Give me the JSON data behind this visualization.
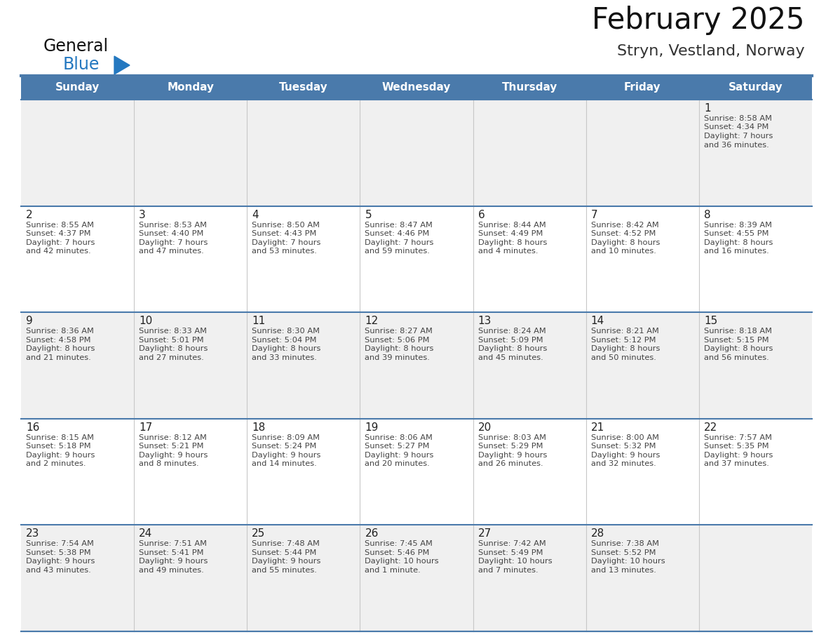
{
  "title": "February 2025",
  "subtitle": "Stryn, Vestland, Norway",
  "days_of_week": [
    "Sunday",
    "Monday",
    "Tuesday",
    "Wednesday",
    "Thursday",
    "Friday",
    "Saturday"
  ],
  "header_bg": "#4a7aab",
  "header_text_color": "#ffffff",
  "cell_bg_odd": "#f0f0f0",
  "cell_bg_even": "#ffffff",
  "line_color": "#4a7aab",
  "day_number_color": "#222222",
  "info_text_color": "#444444",
  "title_color": "#111111",
  "subtitle_color": "#333333",
  "logo_general_color": "#111111",
  "logo_blue_color": "#2478c0",
  "calendar_data": [
    [
      null,
      null,
      null,
      null,
      null,
      null,
      {
        "day": 1,
        "sunrise": "8:58 AM",
        "sunset": "4:34 PM",
        "daylight": "7 hours and 36 minutes."
      }
    ],
    [
      {
        "day": 2,
        "sunrise": "8:55 AM",
        "sunset": "4:37 PM",
        "daylight": "7 hours and 42 minutes."
      },
      {
        "day": 3,
        "sunrise": "8:53 AM",
        "sunset": "4:40 PM",
        "daylight": "7 hours and 47 minutes."
      },
      {
        "day": 4,
        "sunrise": "8:50 AM",
        "sunset": "4:43 PM",
        "daylight": "7 hours and 53 minutes."
      },
      {
        "day": 5,
        "sunrise": "8:47 AM",
        "sunset": "4:46 PM",
        "daylight": "7 hours and 59 minutes."
      },
      {
        "day": 6,
        "sunrise": "8:44 AM",
        "sunset": "4:49 PM",
        "daylight": "8 hours and 4 minutes."
      },
      {
        "day": 7,
        "sunrise": "8:42 AM",
        "sunset": "4:52 PM",
        "daylight": "8 hours and 10 minutes."
      },
      {
        "day": 8,
        "sunrise": "8:39 AM",
        "sunset": "4:55 PM",
        "daylight": "8 hours and 16 minutes."
      }
    ],
    [
      {
        "day": 9,
        "sunrise": "8:36 AM",
        "sunset": "4:58 PM",
        "daylight": "8 hours and 21 minutes."
      },
      {
        "day": 10,
        "sunrise": "8:33 AM",
        "sunset": "5:01 PM",
        "daylight": "8 hours and 27 minutes."
      },
      {
        "day": 11,
        "sunrise": "8:30 AM",
        "sunset": "5:04 PM",
        "daylight": "8 hours and 33 minutes."
      },
      {
        "day": 12,
        "sunrise": "8:27 AM",
        "sunset": "5:06 PM",
        "daylight": "8 hours and 39 minutes."
      },
      {
        "day": 13,
        "sunrise": "8:24 AM",
        "sunset": "5:09 PM",
        "daylight": "8 hours and 45 minutes."
      },
      {
        "day": 14,
        "sunrise": "8:21 AM",
        "sunset": "5:12 PM",
        "daylight": "8 hours and 50 minutes."
      },
      {
        "day": 15,
        "sunrise": "8:18 AM",
        "sunset": "5:15 PM",
        "daylight": "8 hours and 56 minutes."
      }
    ],
    [
      {
        "day": 16,
        "sunrise": "8:15 AM",
        "sunset": "5:18 PM",
        "daylight": "9 hours and 2 minutes."
      },
      {
        "day": 17,
        "sunrise": "8:12 AM",
        "sunset": "5:21 PM",
        "daylight": "9 hours and 8 minutes."
      },
      {
        "day": 18,
        "sunrise": "8:09 AM",
        "sunset": "5:24 PM",
        "daylight": "9 hours and 14 minutes."
      },
      {
        "day": 19,
        "sunrise": "8:06 AM",
        "sunset": "5:27 PM",
        "daylight": "9 hours and 20 minutes."
      },
      {
        "day": 20,
        "sunrise": "8:03 AM",
        "sunset": "5:29 PM",
        "daylight": "9 hours and 26 minutes."
      },
      {
        "day": 21,
        "sunrise": "8:00 AM",
        "sunset": "5:32 PM",
        "daylight": "9 hours and 32 minutes."
      },
      {
        "day": 22,
        "sunrise": "7:57 AM",
        "sunset": "5:35 PM",
        "daylight": "9 hours and 37 minutes."
      }
    ],
    [
      {
        "day": 23,
        "sunrise": "7:54 AM",
        "sunset": "5:38 PM",
        "daylight": "9 hours and 43 minutes."
      },
      {
        "day": 24,
        "sunrise": "7:51 AM",
        "sunset": "5:41 PM",
        "daylight": "9 hours and 49 minutes."
      },
      {
        "day": 25,
        "sunrise": "7:48 AM",
        "sunset": "5:44 PM",
        "daylight": "9 hours and 55 minutes."
      },
      {
        "day": 26,
        "sunrise": "7:45 AM",
        "sunset": "5:46 PM",
        "daylight": "10 hours and 1 minute."
      },
      {
        "day": 27,
        "sunrise": "7:42 AM",
        "sunset": "5:49 PM",
        "daylight": "10 hours and 7 minutes."
      },
      {
        "day": 28,
        "sunrise": "7:38 AM",
        "sunset": "5:52 PM",
        "daylight": "10 hours and 13 minutes."
      },
      null
    ]
  ]
}
